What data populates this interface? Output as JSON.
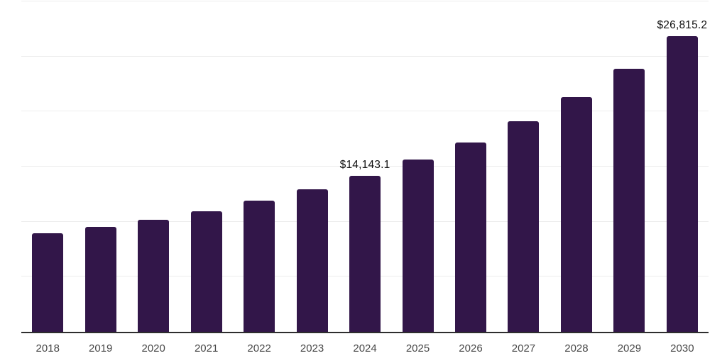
{
  "chart_data": {
    "type": "bar",
    "title": "",
    "xlabel": "",
    "ylabel": "",
    "categories": [
      "2018",
      "2019",
      "2020",
      "2021",
      "2022",
      "2023",
      "2024",
      "2025",
      "2026",
      "2027",
      "2028",
      "2029",
      "2030"
    ],
    "values": [
      8950,
      9500,
      10180,
      10960,
      11880,
      12910,
      14143.1,
      15650,
      17220,
      19140,
      21330,
      23860,
      26815.2
    ],
    "data_labels": {
      "2024": "$14,143.1",
      "2030": "$26,815.2"
    },
    "ylim": [
      0,
      30000
    ],
    "gridline_step": 5000,
    "grid": true,
    "legend": false,
    "colors": {
      "bar": "#321649",
      "axis_line": "#2e2e2e",
      "gridline": "#ededed",
      "tick_label": "#484848",
      "data_label": "#111111",
      "background": "#ffffff"
    }
  }
}
